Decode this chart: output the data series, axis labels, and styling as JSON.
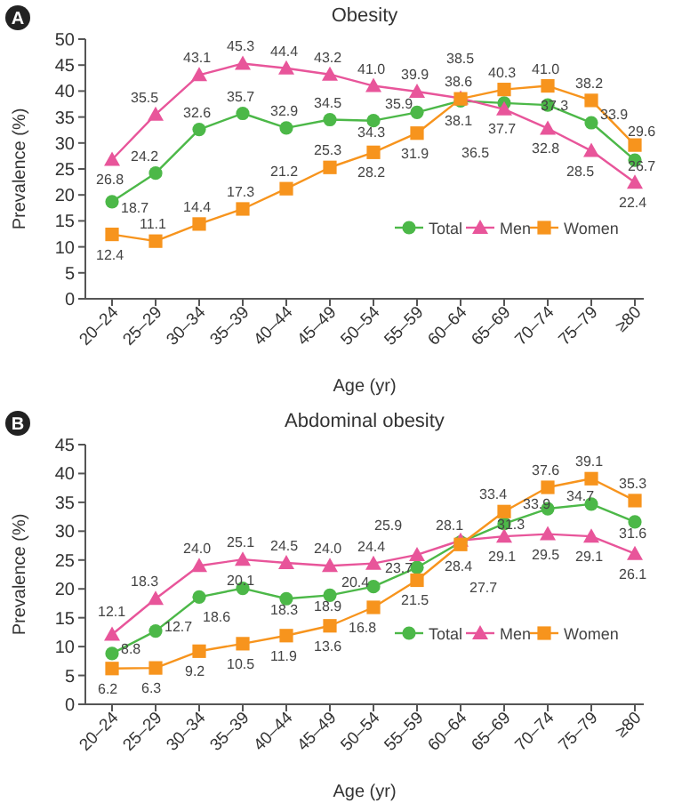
{
  "chart_data": [
    {
      "type": "line",
      "title": "Obesity",
      "xlabel": "Age (yr)",
      "ylabel": "Prevalence (%)",
      "annotations": [
        "A"
      ],
      "categories": [
        "20–24",
        "25–29",
        "30–34",
        "35–39",
        "40–44",
        "45–49",
        "50–54",
        "55–59",
        "60–64",
        "65–69",
        "70–74",
        "75–79",
        "≥80"
      ],
      "ylim": [
        0,
        50
      ],
      "yticks": [
        0,
        5,
        10,
        15,
        20,
        25,
        30,
        35,
        40,
        45,
        50
      ],
      "grid": false,
      "legend": "bottom right",
      "series": [
        {
          "name": "Total",
          "color": "#4cb848",
          "marker": "circle",
          "values": [
            18.7,
            24.2,
            32.6,
            35.7,
            32.9,
            34.5,
            34.3,
            35.9,
            38.1,
            37.7,
            37.3,
            33.9,
            26.7
          ],
          "value_labels": [
            "18.7",
            "24.2",
            "32.6",
            "35.7",
            "32.9",
            "34.5",
            "34.3",
            "35.9",
            "38.1",
            "37.7",
            "37.3",
            "33.9",
            "26.7"
          ]
        },
        {
          "name": "Men",
          "color": "#e8559a",
          "marker": "triangle",
          "values": [
            26.8,
            35.5,
            43.1,
            45.3,
            44.4,
            43.2,
            41.0,
            39.9,
            38.6,
            36.5,
            32.8,
            28.5,
            22.4
          ],
          "value_labels": [
            "26.8",
            "35.5",
            "43.1",
            "45.3",
            "44.4",
            "43.2",
            "41.0",
            "39.9",
            "38.6",
            "36.5",
            "32.8",
            "28.5",
            "22.4"
          ]
        },
        {
          "name": "Women",
          "color": "#f7941d",
          "marker": "square",
          "values": [
            12.4,
            11.1,
            14.4,
            17.3,
            21.2,
            25.3,
            28.2,
            31.9,
            38.5,
            40.3,
            41.0,
            38.2,
            29.6
          ],
          "value_labels": [
            "12.4",
            "11.1",
            "14.4",
            "17.3",
            "21.2",
            "25.3",
            "28.2",
            "31.9",
            "38.5",
            "40.3",
            "41.0",
            "38.2",
            "29.6"
          ]
        }
      ]
    },
    {
      "type": "line",
      "title": "Abdominal obesity",
      "xlabel": "Age (yr)",
      "ylabel": "Prevalence (%)",
      "annotations": [
        "B"
      ],
      "categories": [
        "20–24",
        "25–29",
        "30–34",
        "35–39",
        "40–44",
        "45–49",
        "50–54",
        "55–59",
        "60–64",
        "65–69",
        "70–74",
        "75–79",
        "≥80"
      ],
      "ylim": [
        0,
        45
      ],
      "yticks": [
        0,
        5,
        10,
        15,
        20,
        25,
        30,
        35,
        40,
        45
      ],
      "grid": false,
      "legend": "bottom right",
      "series": [
        {
          "name": "Total",
          "color": "#4cb848",
          "marker": "circle",
          "values": [
            8.8,
            12.7,
            18.6,
            20.1,
            18.3,
            18.9,
            20.4,
            23.7,
            28.1,
            31.3,
            33.9,
            34.7,
            31.6
          ],
          "value_labels": [
            "8.8",
            "12.7",
            "18.6",
            "20.1",
            "18.3",
            "18.9",
            "20.4",
            "23.7",
            "28.1",
            "31.3",
            "33.9",
            "34.7",
            "31.6"
          ]
        },
        {
          "name": "Men",
          "color": "#e8559a",
          "marker": "triangle",
          "values": [
            12.1,
            18.3,
            24.0,
            25.1,
            24.5,
            24.0,
            24.4,
            25.9,
            28.4,
            29.1,
            29.5,
            29.1,
            26.1
          ],
          "value_labels": [
            "12.1",
            "18.3",
            "24.0",
            "25.1",
            "24.5",
            "24.0",
            "24.4",
            "25.9",
            "28.4",
            "29.1",
            "29.5",
            "29.1",
            "26.1"
          ]
        },
        {
          "name": "Women",
          "color": "#f7941d",
          "marker": "square",
          "values": [
            6.2,
            6.3,
            9.2,
            10.5,
            11.9,
            13.6,
            16.8,
            21.5,
            27.7,
            33.4,
            37.6,
            39.1,
            35.3
          ],
          "value_labels": [
            "6.2",
            "6.3",
            "9.2",
            "10.5",
            "11.9",
            "13.6",
            "16.8",
            "21.5",
            "27.7",
            "33.4",
            "37.6",
            "39.1",
            "35.3"
          ]
        }
      ]
    }
  ]
}
